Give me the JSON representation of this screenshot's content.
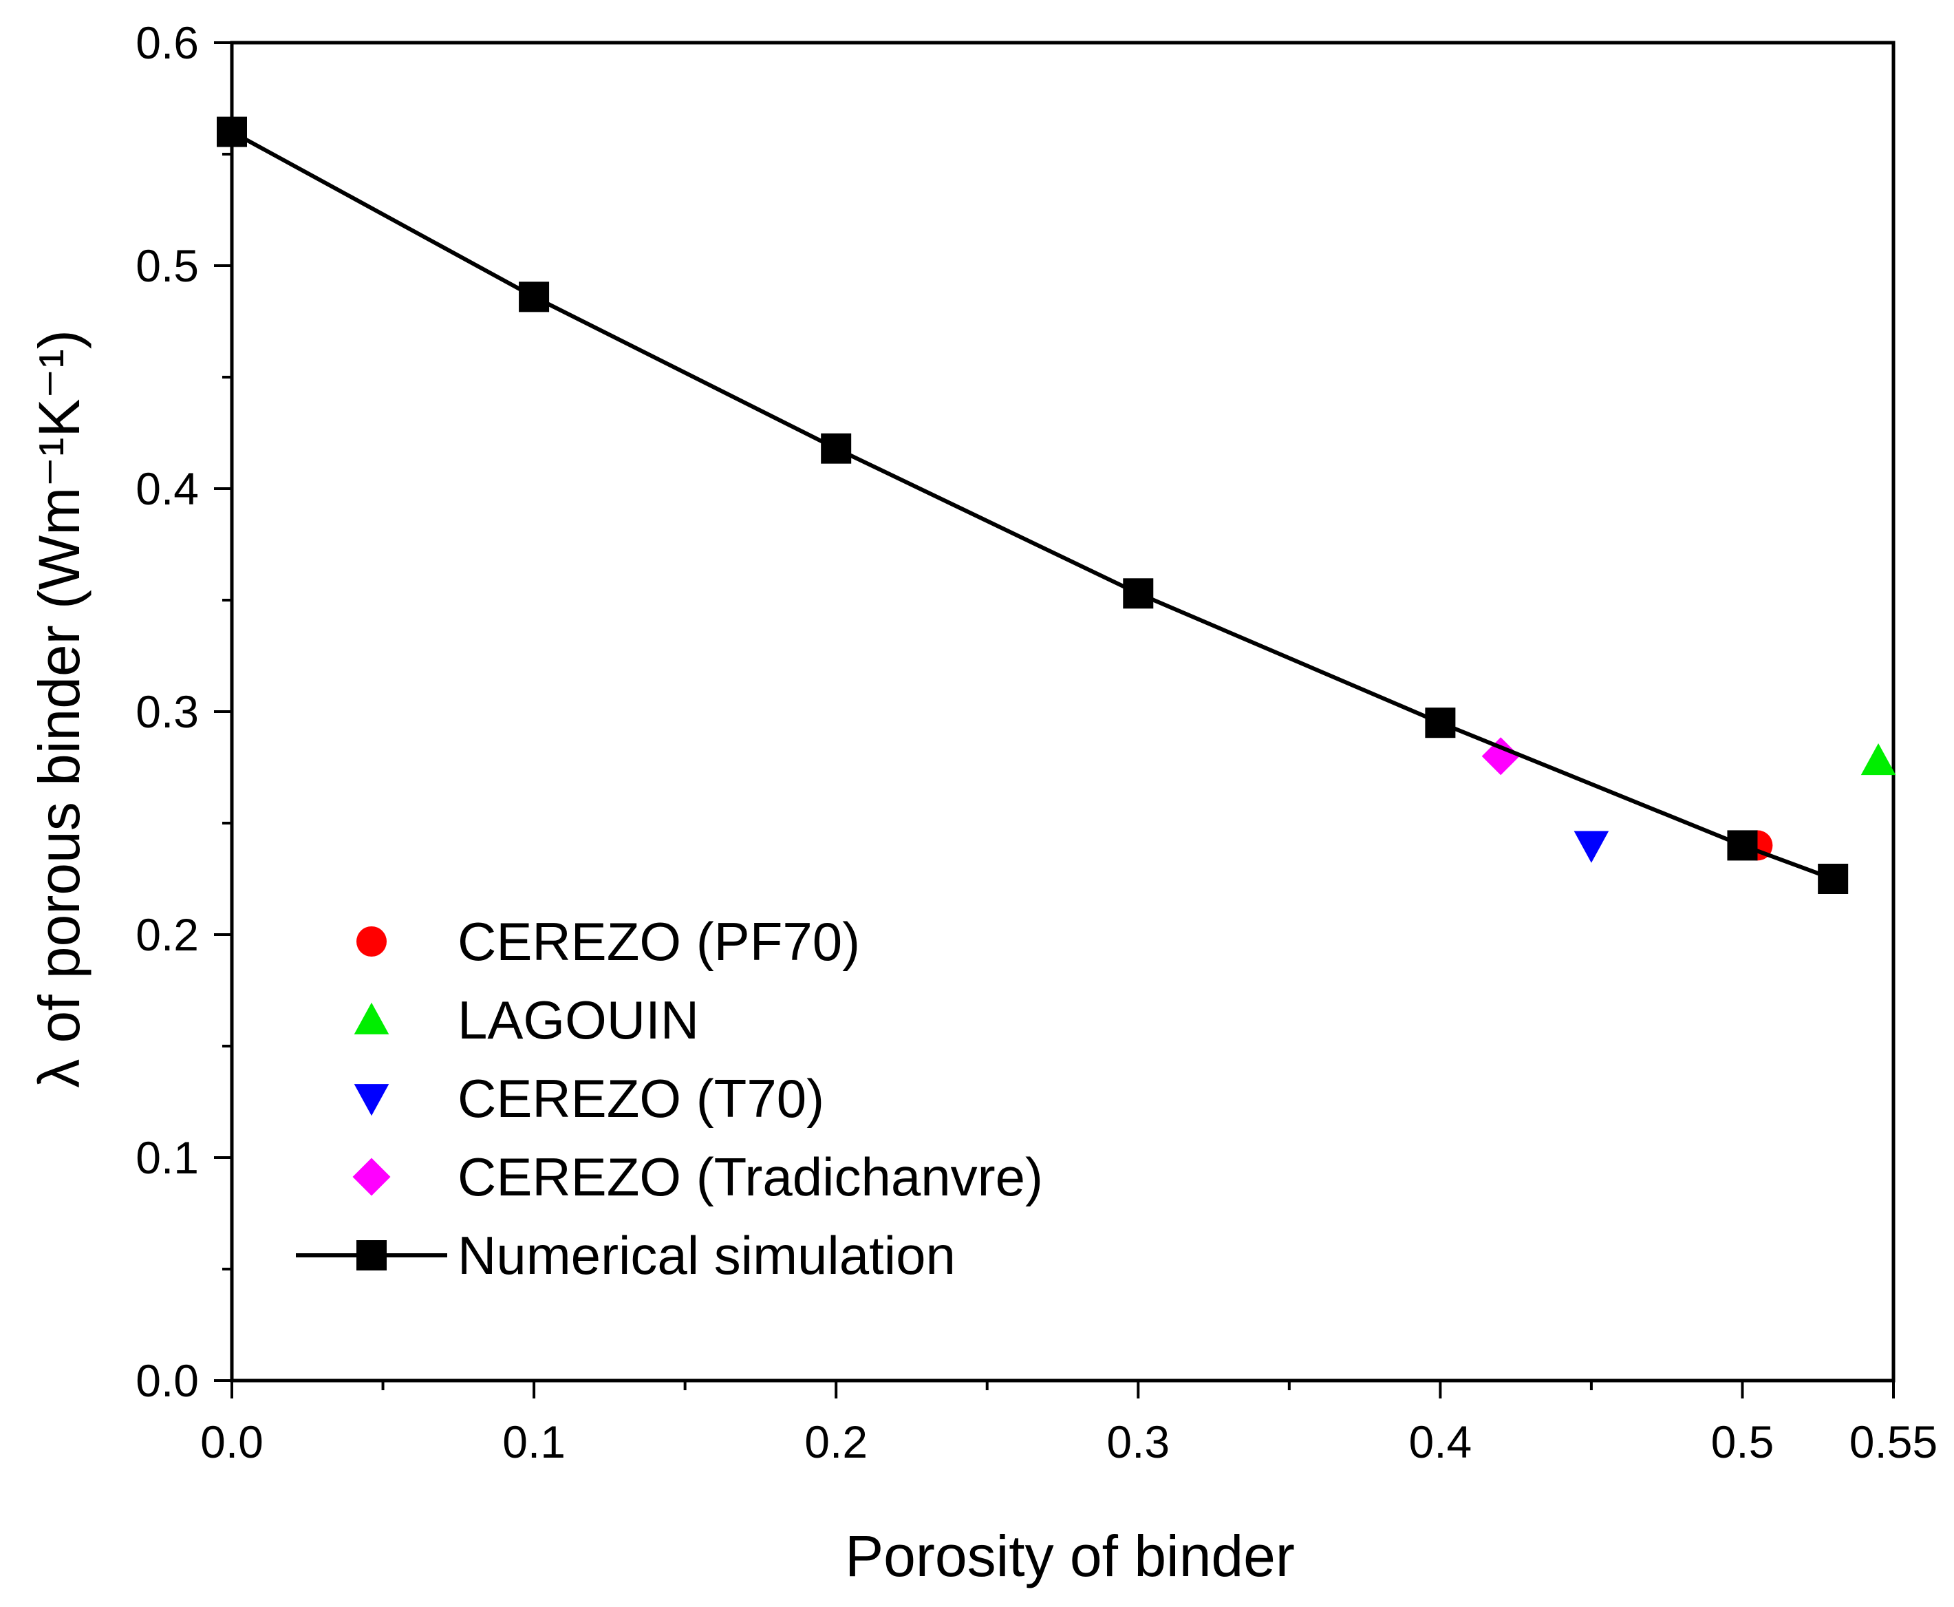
{
  "chart_data": {
    "type": "scatter",
    "title": "",
    "xlabel": "Porosity of binder",
    "ylabel": "λ of porous binder (Wm⁻¹K⁻¹)",
    "xlim": [
      0,
      0.55
    ],
    "ylim": [
      0,
      0.6
    ],
    "x_ticks": [
      0.0,
      0.1,
      0.2,
      0.3,
      0.4,
      0.5,
      0.55
    ],
    "x_tick_labels": [
      "0.0",
      "0.1",
      "0.2",
      "0.3",
      "0.4",
      "0.5",
      "0.55"
    ],
    "y_ticks": [
      0.0,
      0.1,
      0.2,
      0.3,
      0.4,
      0.5,
      0.6
    ],
    "y_tick_labels": [
      "0.0",
      "0.1",
      "0.2",
      "0.3",
      "0.4",
      "0.5",
      "0.6"
    ],
    "grid": false,
    "legend_position": "bottom-left",
    "series": [
      {
        "name": "CEREZO (PF70)",
        "marker": "circle",
        "color": "#ff0000",
        "line": false,
        "x": [
          0.505
        ],
        "y": [
          0.24
        ]
      },
      {
        "name": "LAGOUIN",
        "marker": "triangle-up",
        "color": "#00ee00",
        "line": false,
        "x": [
          0.545
        ],
        "y": [
          0.278
        ]
      },
      {
        "name": "CEREZO (T70)",
        "marker": "triangle-down",
        "color": "#0000ff",
        "line": false,
        "x": [
          0.45
        ],
        "y": [
          0.24
        ]
      },
      {
        "name": "CEREZO (Tradichanvre)",
        "marker": "diamond",
        "color": "#ff00ff",
        "line": false,
        "x": [
          0.42
        ],
        "y": [
          0.28
        ]
      },
      {
        "name": "Numerical simulation",
        "marker": "square",
        "color": "#000000",
        "line": true,
        "x": [
          0.0,
          0.1,
          0.2,
          0.3,
          0.4,
          0.5,
          0.53
        ],
        "y": [
          0.56,
          0.486,
          0.418,
          0.353,
          0.295,
          0.24,
          0.225
        ]
      }
    ]
  }
}
